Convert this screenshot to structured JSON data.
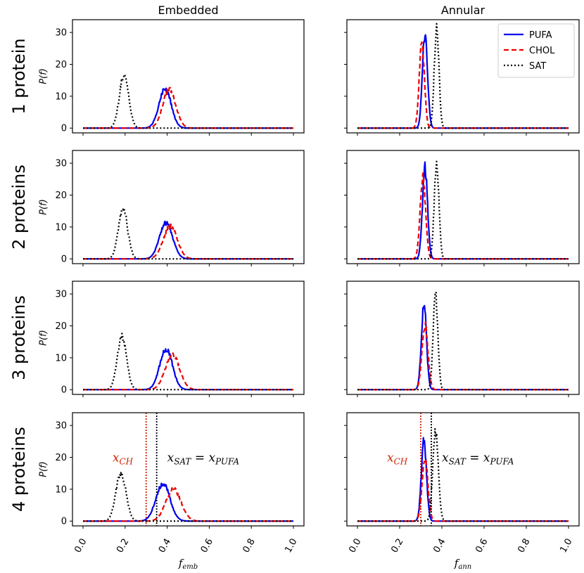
{
  "chart_data": {
    "type": "line",
    "layout": "4 rows x 2 columns",
    "columns": [
      "Embedded",
      "Annular"
    ],
    "rows": [
      "1 protein",
      "2 proteins",
      "3 proteins",
      "4 proteins"
    ],
    "ylabel": "P(f)",
    "xlabels": {
      "embedded": {
        "base": "f",
        "sub": "emb"
      },
      "annular": {
        "base": "f",
        "sub": "ann"
      }
    },
    "xlim": [
      0.0,
      1.0
    ],
    "ylim": [
      -1.5,
      34
    ],
    "xticks": [
      "0.0",
      "0.2",
      "0.4",
      "0.6",
      "0.8",
      "1.0"
    ],
    "yticks": [
      "0",
      "10",
      "20",
      "30"
    ],
    "xtick_values": [
      0.0,
      0.2,
      0.4,
      0.6,
      0.8,
      1.0
    ],
    "ytick_values": [
      0,
      10,
      20,
      30
    ],
    "legend": {
      "location": "top-right of Annular 1 protein panel",
      "entries": [
        {
          "label": "PUFA",
          "color": "#0000ee",
          "style": "solid"
        },
        {
          "label": "CHOL",
          "color": "#ee0000",
          "style": "dashed"
        },
        {
          "label": "SAT",
          "color": "#000000",
          "style": "dotted"
        }
      ]
    },
    "series_styles": {
      "PUFA": {
        "color": "#0000ee",
        "dash": ""
      },
      "CHOL": {
        "color": "#ee0000",
        "dash": "7,4"
      },
      "SAT": {
        "color": "#000000",
        "dash": "2,3"
      }
    },
    "panels": [
      {
        "row": 0,
        "col": 0,
        "series": [
          {
            "name": "PUFA",
            "mu": 0.39,
            "sigma": 0.029,
            "peak": 12.4
          },
          {
            "name": "CHOL",
            "mu": 0.41,
            "sigma": 0.031,
            "peak": 12.0
          },
          {
            "name": "SAT",
            "mu": 0.195,
            "sigma": 0.022,
            "peak": 16.8
          }
        ]
      },
      {
        "row": 0,
        "col": 1,
        "series": [
          {
            "name": "PUFA",
            "mu": 0.32,
            "sigma": 0.012,
            "peak": 29.7
          },
          {
            "name": "CHOL",
            "mu": 0.305,
            "sigma": 0.012,
            "peak": 27.5
          },
          {
            "name": "SAT",
            "mu": 0.375,
            "sigma": 0.011,
            "peak": 31.5
          }
        ]
      },
      {
        "row": 1,
        "col": 0,
        "series": [
          {
            "name": "PUFA",
            "mu": 0.395,
            "sigma": 0.031,
            "peak": 11.3
          },
          {
            "name": "CHOL",
            "mu": 0.415,
            "sigma": 0.033,
            "peak": 10.2
          },
          {
            "name": "SAT",
            "mu": 0.19,
            "sigma": 0.022,
            "peak": 15.8
          }
        ]
      },
      {
        "row": 1,
        "col": 1,
        "series": [
          {
            "name": "PUFA",
            "mu": 0.32,
            "sigma": 0.012,
            "peak": 28.4
          },
          {
            "name": "CHOL",
            "mu": 0.31,
            "sigma": 0.013,
            "peak": 25.5
          },
          {
            "name": "SAT",
            "mu": 0.375,
            "sigma": 0.011,
            "peak": 30.5
          }
        ]
      },
      {
        "row": 2,
        "col": 0,
        "series": [
          {
            "name": "PUFA",
            "mu": 0.395,
            "sigma": 0.03,
            "peak": 12.8
          },
          {
            "name": "CHOL",
            "mu": 0.425,
            "sigma": 0.034,
            "peak": 11.0
          },
          {
            "name": "SAT",
            "mu": 0.185,
            "sigma": 0.022,
            "peak": 16.8
          }
        ]
      },
      {
        "row": 2,
        "col": 1,
        "series": [
          {
            "name": "PUFA",
            "mu": 0.315,
            "sigma": 0.012,
            "peak": 27.0
          },
          {
            "name": "CHOL",
            "mu": 0.32,
            "sigma": 0.014,
            "peak": 20.5
          },
          {
            "name": "SAT",
            "mu": 0.37,
            "sigma": 0.011,
            "peak": 30.0
          }
        ]
      },
      {
        "row": 3,
        "col": 0,
        "series": [
          {
            "name": "PUFA",
            "mu": 0.38,
            "sigma": 0.033,
            "peak": 11.8
          },
          {
            "name": "CHOL",
            "mu": 0.43,
            "sigma": 0.036,
            "peak": 10.0
          },
          {
            "name": "SAT",
            "mu": 0.18,
            "sigma": 0.024,
            "peak": 15.2
          }
        ]
      },
      {
        "row": 3,
        "col": 1,
        "series": [
          {
            "name": "PUFA",
            "mu": 0.315,
            "sigma": 0.012,
            "peak": 25.5
          },
          {
            "name": "CHOL",
            "mu": 0.32,
            "sigma": 0.014,
            "peak": 19.5
          },
          {
            "name": "SAT",
            "mu": 0.37,
            "sigma": 0.013,
            "peak": 28.5
          }
        ]
      }
    ],
    "annotations": {
      "row": 3,
      "vlines": [
        {
          "x": 0.3,
          "color": "#cc2200",
          "dash": "2,2"
        },
        {
          "x": 0.35,
          "color": "#000000",
          "dash": "2,2"
        }
      ],
      "labels": [
        {
          "base": "x",
          "sub": "CH",
          "color": "#cc2200",
          "x": 0.14,
          "y": 20
        },
        {
          "base": "x",
          "sub": "SAT",
          "mid": " = x",
          "sub2": "PUFA",
          "color": "#000000",
          "x": 0.4,
          "y": 20
        }
      ]
    }
  }
}
